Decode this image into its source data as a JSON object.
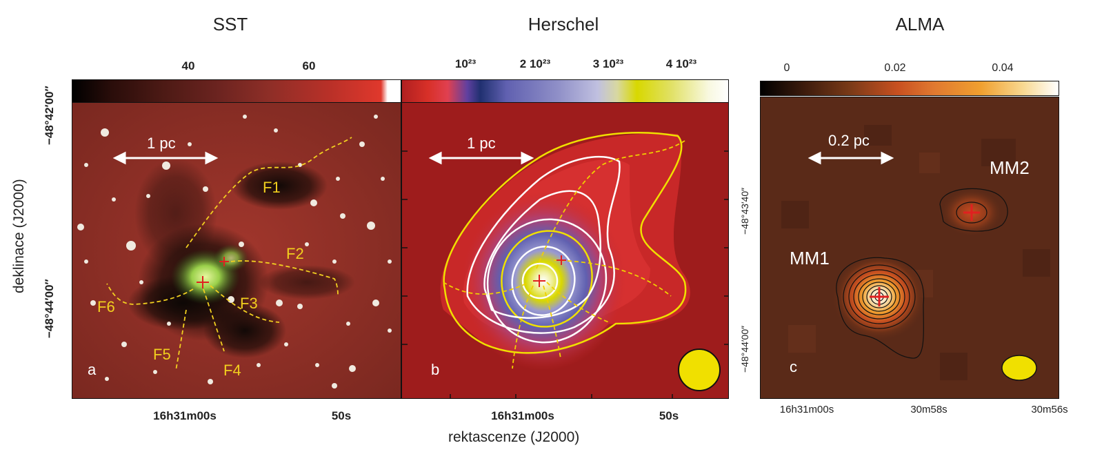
{
  "panels": {
    "sst": {
      "title": "SST",
      "letter": "a",
      "colorbar_ticks": [
        "40",
        "60"
      ],
      "scale_label": "1 pc",
      "filaments": [
        "F1",
        "F2",
        "F3",
        "F4",
        "F5",
        "F6"
      ],
      "y_ticks": [
        "−48°42′00″",
        "−48°44′00″"
      ],
      "x_ticks": [
        "16h31m00s",
        "50s"
      ]
    },
    "herschel": {
      "title": "Herschel",
      "letter": "b",
      "colorbar_ticks": [
        "10²³",
        "2 10²³",
        "3 10²³",
        "4 10²³"
      ],
      "scale_label": "1 pc",
      "x_ticks": [
        "16h31m00s",
        "50s"
      ]
    },
    "alma": {
      "title": "ALMA",
      "letter": "c",
      "colorbar_ticks": [
        "0",
        "0.02",
        "0.04"
      ],
      "scale_label": "0.2 pc",
      "sources": [
        "MM1",
        "MM2"
      ],
      "y_ticks": [
        "−48°43′40″",
        "−48°44′00″"
      ],
      "x_ticks": [
        "16h31m00s",
        "30m58s",
        "30m56s"
      ]
    }
  },
  "axes": {
    "xlabel": "rektascenze (J2000)",
    "ylabel": "deklinace (J2000)"
  },
  "colors": {
    "sst_bg": "#8e3027",
    "herschel_bg": "#b52020",
    "alma_bg": "#5a2a18",
    "contour_yellow": "#f0e000",
    "contour_white": "#ffffff",
    "filament_dash": "#f2d020",
    "marker_red": "#e02020"
  }
}
